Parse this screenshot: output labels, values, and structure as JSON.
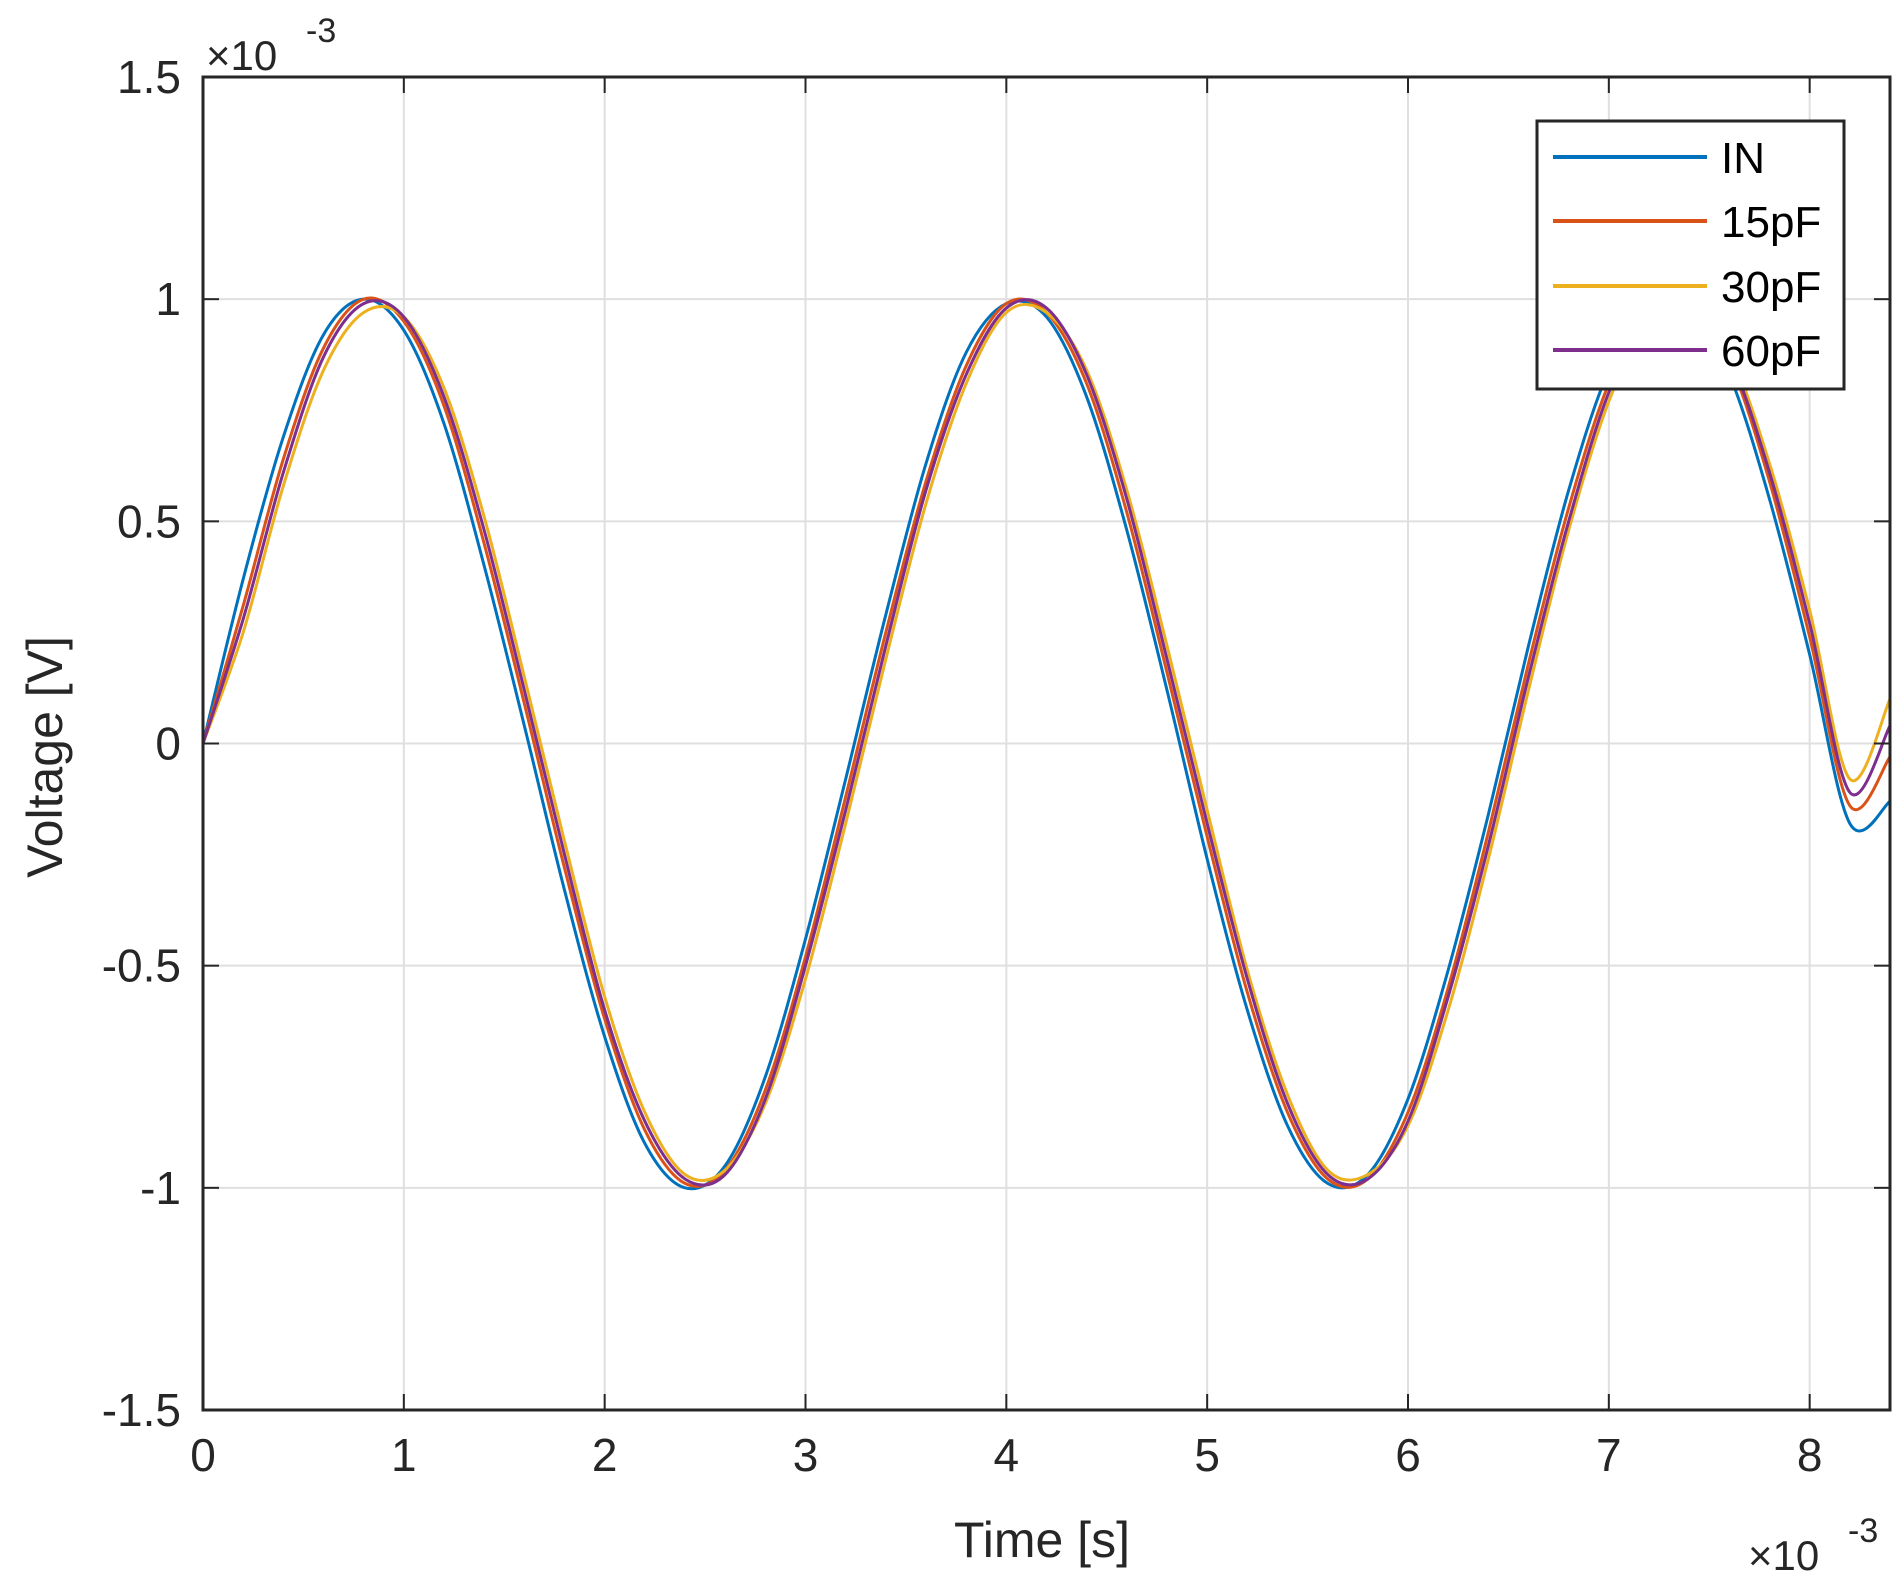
{
  "chart_data": {
    "type": "line",
    "xlabel": "Time [s]",
    "ylabel": "Voltage [V]",
    "x_exponent_label": "×10",
    "x_exponent_power": "-3",
    "y_exponent_label": "×10",
    "y_exponent_power": "-3",
    "xlim": [
      0,
      0.0084
    ],
    "ylim": [
      -0.0015,
      0.0015
    ],
    "x_ticks": [
      0,
      0.001,
      0.002,
      0.003,
      0.004,
      0.005,
      0.006,
      0.007,
      0.008
    ],
    "x_tick_labels": [
      "0",
      "1",
      "2",
      "3",
      "4",
      "5",
      "6",
      "7",
      "8"
    ],
    "y_ticks": [
      -0.0015,
      -0.001,
      -0.0005,
      0,
      0.0005,
      0.001,
      0.0015
    ],
    "y_tick_labels": [
      "-1.5",
      "-1",
      "-0.5",
      "0",
      "0.5",
      "1",
      "1.5"
    ],
    "grid": true,
    "legend_position": "top-right",
    "x": [
      0,
      0.0002,
      0.0004,
      0.0006,
      0.0008,
      0.001,
      0.0012,
      0.0014,
      0.0016,
      0.0018,
      0.002,
      0.0022,
      0.0024,
      0.0026,
      0.0028,
      0.003,
      0.0032,
      0.0034,
      0.0036,
      0.0038,
      0.004,
      0.0042,
      0.0044,
      0.0046,
      0.0048,
      0.005,
      0.0052,
      0.0054,
      0.0056,
      0.0058,
      0.006,
      0.0062,
      0.0064,
      0.0066,
      0.0068,
      0.007,
      0.0072,
      0.0074,
      0.0076,
      0.0078,
      0.008,
      0.0082,
      0.0084
    ],
    "series": [
      {
        "name": "IN",
        "color": "#0072BD",
        "values": [
          0,
          0.00037,
          0.00069,
          0.00092,
          0.001,
          0.00093,
          0.00072,
          0.0004,
          4e-05,
          -0.00033,
          -0.00066,
          -0.0009,
          -0.001,
          -0.00095,
          -0.00075,
          -0.00044,
          -8e-05,
          0.00029,
          0.00063,
          0.00088,
          0.00099,
          0.00096,
          0.00078,
          0.00048,
          0.00012,
          -0.00026,
          -0.0006,
          -0.00086,
          -0.00099,
          -0.00097,
          -0.0008,
          -0.00051,
          -0.00016,
          0.00022,
          0.00057,
          0.00084,
          0.00098,
          0.00098,
          0.00083,
          0.00055,
          0.0002,
          -0.00018,
          -0.00013
        ]
      },
      {
        "name": "15pF",
        "color": "#D95319",
        "values": [
          0,
          0.00031,
          0.00064,
          0.00089,
          0.001,
          0.00095,
          0.00076,
          0.00045,
          9e-05,
          -0.00028,
          -0.00062,
          -0.00087,
          -0.00099,
          -0.00096,
          -0.00078,
          -0.00048,
          -0.00012,
          0.00025,
          0.00059,
          0.00085,
          0.00099,
          0.00097,
          0.00081,
          0.00052,
          0.00016,
          -0.00021,
          -0.00056,
          -0.00083,
          -0.00098,
          -0.00098,
          -0.00083,
          -0.00055,
          -0.0002,
          0.00018,
          0.00053,
          0.00081,
          0.00097,
          0.00099,
          0.00086,
          0.00059,
          0.00024,
          -0.00014,
          -3e-05
        ]
      },
      {
        "name": "30pF",
        "color": "#EDB120",
        "values": [
          0,
          0.00025,
          0.00058,
          0.00084,
          0.00097,
          0.00096,
          0.0008,
          0.00051,
          0.00015,
          -0.00022,
          -0.00057,
          -0.00083,
          -0.00097,
          -0.00096,
          -0.00081,
          -0.00053,
          -0.00018,
          0.00019,
          0.00054,
          0.00081,
          0.00097,
          0.00097,
          0.00084,
          0.00057,
          0.00022,
          -0.00015,
          -0.00051,
          -0.00079,
          -0.00096,
          -0.00097,
          -0.00086,
          -0.0006,
          -0.00026,
          0.00012,
          0.00048,
          0.00077,
          0.00095,
          0.00098,
          0.00088,
          0.00063,
          0.0003,
          -8e-05,
          0.0001
        ]
      },
      {
        "name": "60pF",
        "color": "#7E2F8E",
        "values": [
          0,
          0.00028,
          0.00061,
          0.00087,
          0.00099,
          0.00096,
          0.00078,
          0.00048,
          0.00012,
          -0.00025,
          -0.0006,
          -0.00085,
          -0.00098,
          -0.00097,
          -0.0008,
          -0.0005,
          -0.00015,
          0.00022,
          0.00057,
          0.00083,
          0.00098,
          0.00098,
          0.00083,
          0.00055,
          0.00019,
          -0.00018,
          -0.00053,
          -0.00081,
          -0.00097,
          -0.00098,
          -0.00085,
          -0.00057,
          -0.00023,
          0.00015,
          0.0005,
          0.00079,
          0.00096,
          0.00099,
          0.00087,
          0.00061,
          0.00027,
          -0.00011,
          4e-05
        ]
      }
    ]
  }
}
